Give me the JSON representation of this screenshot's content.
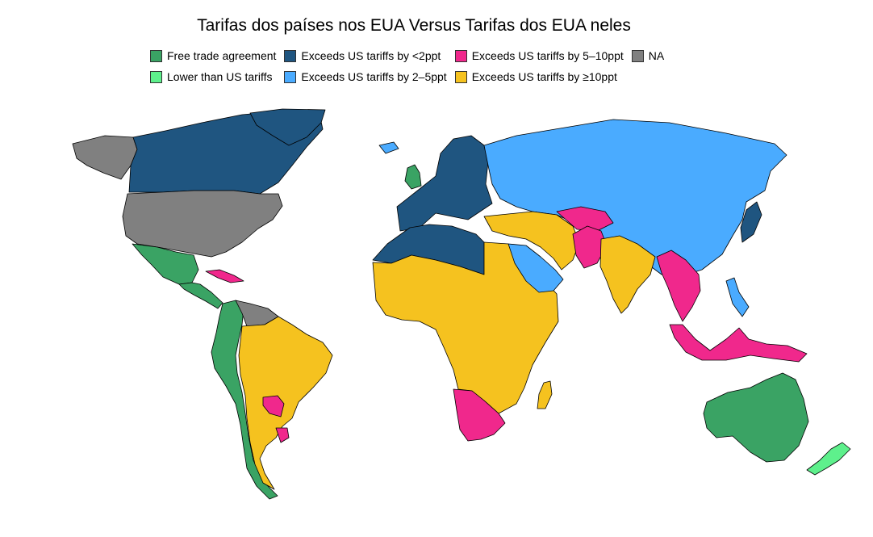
{
  "title": "Tarifas dos países nos EUA Versus Tarifas dos EUA neles",
  "legend": [
    {
      "label": "Free trade agreement",
      "color": "#3aa364"
    },
    {
      "label": "Exceeds US tariffs by <2ppt",
      "color": "#1f5580"
    },
    {
      "label": "Exceeds US tariffs by 5–10ppt",
      "color": "#f0288c"
    },
    {
      "label": "NA",
      "color": "#808080"
    },
    {
      "label": "Lower than US tariffs",
      "color": "#5ef08c"
    },
    {
      "label": "Exceeds US tariffs by 2–5ppt",
      "color": "#4aabff"
    },
    {
      "label": "Exceeds US tariffs by ≥10ppt",
      "color": "#f5c21f"
    }
  ],
  "colors": {
    "fta": "#3aa364",
    "lower": "#5ef08c",
    "lt2": "#1f5580",
    "p2to5": "#4aabff",
    "p5to10": "#f0288c",
    "gte10": "#f5c21f",
    "na": "#808080"
  },
  "regions": [
    {
      "name": "alaska",
      "cat": "na"
    },
    {
      "name": "canada",
      "cat": "lt2"
    },
    {
      "name": "greenland",
      "cat": "lt2"
    },
    {
      "name": "usa",
      "cat": "na"
    },
    {
      "name": "mexico",
      "cat": "fta"
    },
    {
      "name": "central-america",
      "cat": "fta"
    },
    {
      "name": "cuba",
      "cat": "p5to10"
    },
    {
      "name": "colombia-peru-chile",
      "cat": "fta"
    },
    {
      "name": "venezuela",
      "cat": "na"
    },
    {
      "name": "brazil-argentina",
      "cat": "gte10"
    },
    {
      "name": "paraguay",
      "cat": "p5to10"
    },
    {
      "name": "uruguay",
      "cat": "p5to10"
    },
    {
      "name": "iceland",
      "cat": "p2to5"
    },
    {
      "name": "uk",
      "cat": "fta"
    },
    {
      "name": "europe",
      "cat": "lt2"
    },
    {
      "name": "russia-china",
      "cat": "p2to5"
    },
    {
      "name": "north-africa",
      "cat": "lt2"
    },
    {
      "name": "africa",
      "cat": "gte10"
    },
    {
      "name": "southern-africa",
      "cat": "p5to10"
    },
    {
      "name": "madagascar",
      "cat": "gte10"
    },
    {
      "name": "saudi-arabia",
      "cat": "p2to5"
    },
    {
      "name": "middle-east",
      "cat": "gte10"
    },
    {
      "name": "central-asia",
      "cat": "p5to10"
    },
    {
      "name": "pakistan",
      "cat": "p5to10"
    },
    {
      "name": "india",
      "cat": "gte10"
    },
    {
      "name": "southeast-asia",
      "cat": "p5to10"
    },
    {
      "name": "japan",
      "cat": "lt2"
    },
    {
      "name": "philippines",
      "cat": "p2to5"
    },
    {
      "name": "indonesia",
      "cat": "p5to10"
    },
    {
      "name": "australia",
      "cat": "fta"
    },
    {
      "name": "new-zealand",
      "cat": "lower"
    }
  ]
}
